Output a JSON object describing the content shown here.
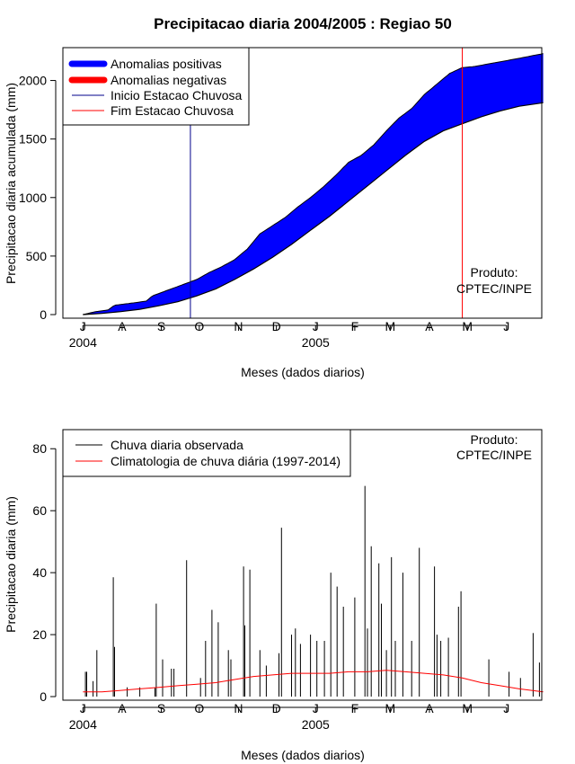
{
  "title": "Precipitacao diaria 2004/2005 : Regiao 50",
  "colors": {
    "positive": "#0000ff",
    "negative": "#ff0000",
    "start_line": "#00008b",
    "end_line": "#ff0000",
    "observed": "#000000",
    "climatology": "#ff0000"
  },
  "chart_data": [
    {
      "type": "area",
      "ylabel": "Precipitacao diaria acumulada (mm)",
      "xlabel": "Meses (dados diarios)",
      "ylim": [
        0,
        2250
      ],
      "yticks": [
        0,
        500,
        1000,
        1500,
        2000
      ],
      "xlim_days": [
        -13,
        360
      ],
      "month_ticks": {
        "days": [
          0,
          31,
          62,
          92,
          123,
          153,
          184,
          215,
          243,
          274,
          304,
          335
        ],
        "labels": [
          "J",
          "A",
          "S",
          "O",
          "N",
          "D",
          "J",
          "F",
          "M",
          "A",
          "M",
          "J"
        ]
      },
      "year_labels": [
        {
          "day": 0,
          "label": "2004"
        },
        {
          "day": 184,
          "label": "2005"
        }
      ],
      "start_season_day": 85,
      "end_season_day": 300,
      "observed_cumulative": {
        "x": [
          0,
          10,
          20,
          25,
          40,
          50,
          55,
          65,
          80,
          90,
          100,
          110,
          120,
          130,
          140,
          150,
          160,
          170,
          180,
          190,
          200,
          210,
          220,
          230,
          240,
          250,
          260,
          270,
          280,
          290,
          300,
          310,
          320,
          330,
          340,
          350,
          364
        ],
        "values": [
          0,
          25,
          40,
          80,
          100,
          115,
          160,
          200,
          260,
          300,
          360,
          410,
          470,
          560,
          690,
          760,
          830,
          920,
          1000,
          1090,
          1190,
          1300,
          1360,
          1450,
          1570,
          1680,
          1760,
          1880,
          1970,
          2060,
          2110,
          2120,
          2140,
          2160,
          2180,
          2200,
          2230
        ]
      },
      "climatology_cumulative": {
        "x": [
          0,
          15,
          30,
          45,
          60,
          75,
          90,
          105,
          120,
          135,
          150,
          165,
          180,
          195,
          210,
          225,
          240,
          255,
          270,
          285,
          300,
          315,
          330,
          345,
          364
        ],
        "values": [
          0,
          10,
          25,
          45,
          75,
          110,
          160,
          220,
          300,
          390,
          490,
          600,
          720,
          840,
          970,
          1100,
          1230,
          1360,
          1480,
          1570,
          1630,
          1690,
          1740,
          1780,
          1810
        ]
      },
      "legend": [
        {
          "label": "Anomalias positivas",
          "style": "thick"
        },
        {
          "label": "Anomalias negativas",
          "style": "thick"
        },
        {
          "label": "Inicio Estacao Chuvosa",
          "style": "thin"
        },
        {
          "label": "Fim Estacao Chuvosa",
          "style": "thin"
        }
      ],
      "legend_position": "top-left",
      "annotation": {
        "line1": "Produto:",
        "line2": "CPTEC/INPE",
        "position": "bottom-right"
      }
    },
    {
      "type": "bar",
      "ylabel": "Precipitacao diaria (mm)",
      "xlabel": "Meses (dados diarios)",
      "ylim": [
        0,
        85
      ],
      "yticks": [
        0,
        20,
        40,
        60,
        80
      ],
      "xlim_days": [
        -13,
        360
      ],
      "month_ticks": {
        "days": [
          0,
          31,
          62,
          92,
          123,
          153,
          184,
          215,
          243,
          274,
          304,
          335
        ],
        "labels": [
          "J",
          "A",
          "S",
          "O",
          "N",
          "D",
          "J",
          "F",
          "M",
          "A",
          "M",
          "J"
        ]
      },
      "year_labels": [
        {
          "day": 0,
          "label": "2004"
        },
        {
          "day": 184,
          "label": "2005"
        }
      ],
      "observed_peaks": {
        "x": [
          2,
          3,
          8,
          11,
          24,
          25,
          35,
          45,
          57,
          58,
          63,
          70,
          72,
          82,
          93,
          97,
          102,
          107,
          115,
          117,
          127,
          128,
          132,
          140,
          145,
          155,
          157,
          165,
          168,
          172,
          180,
          185,
          191,
          196,
          201,
          206,
          215,
          223,
          225,
          228,
          234,
          236,
          240,
          244,
          247,
          253,
          260,
          266,
          278,
          280,
          283,
          289,
          297,
          299,
          321,
          337,
          346,
          356,
          361
        ],
        "values": [
          8,
          8,
          5,
          15,
          38.5,
          16,
          3,
          3,
          3,
          30,
          12,
          9,
          9,
          44,
          6,
          18,
          28,
          24,
          15,
          12,
          42,
          23,
          41,
          15,
          10,
          14,
          54.5,
          20,
          22,
          17,
          20,
          18,
          18,
          40,
          35.5,
          29,
          32,
          68,
          22,
          48.5,
          43,
          30,
          15,
          45,
          18,
          40,
          18,
          48,
          42,
          20,
          18,
          19,
          29,
          34,
          12,
          8,
          6,
          20.5,
          11
        ]
      },
      "climatology_series": {
        "x": [
          0,
          15,
          30,
          45,
          60,
          75,
          90,
          105,
          120,
          135,
          150,
          165,
          180,
          195,
          210,
          225,
          240,
          255,
          270,
          285,
          300,
          315,
          330,
          345,
          364
        ],
        "values": [
          1.5,
          1.5,
          2,
          2.5,
          3,
          3.5,
          4,
          4.5,
          5.5,
          6.5,
          7,
          7.5,
          7.5,
          7.5,
          8,
          8,
          8.5,
          8,
          7.5,
          7,
          6,
          4.5,
          3.5,
          2.5,
          1.5
        ]
      },
      "legend": [
        {
          "label": "Chuva diaria observada",
          "style": "thin"
        },
        {
          "label": "Climatologia de chuva diária (1997-2014)",
          "style": "thin"
        }
      ],
      "legend_position": "top-left",
      "annotation": {
        "line1": "Produto:",
        "line2": "CPTEC/INPE",
        "position": "top-right"
      }
    }
  ]
}
